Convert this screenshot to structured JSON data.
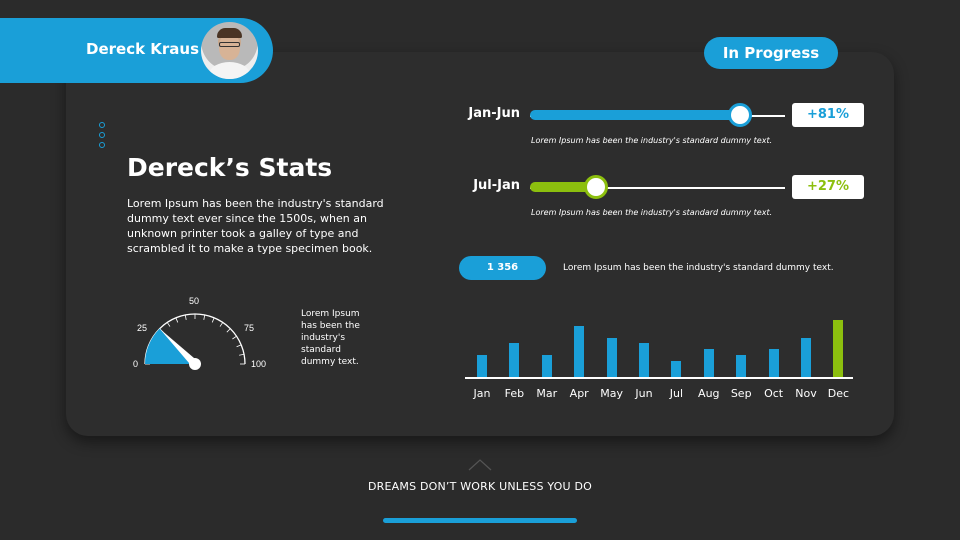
{
  "header": {
    "name": "Dereck Kraus",
    "status": "In Progress"
  },
  "stats": {
    "title": "Dereck’s Stats",
    "description": "Lorem Ipsum has been the industry's standard dummy text ever since the 1500s, when an unknown printer took a galley of type and scrambled it to make a type specimen book."
  },
  "gauge": {
    "ticks": [
      "0",
      "25",
      "50",
      "75",
      "100"
    ],
    "value": 25,
    "note": "Lorem Ipsum has been the industry's standard dummy text."
  },
  "ranges": [
    {
      "label": "Jan-Jun",
      "percent_label": "+81%",
      "fill": 81,
      "color": "#1a9fd8",
      "caption": "Lorem Ipsum has been the industry's standard dummy text."
    },
    {
      "label": "Jul-Jan",
      "percent_label": "+27%",
      "fill": 27,
      "color": "#8cbf0e",
      "caption": "Lorem Ipsum has been the industry's standard dummy text."
    }
  ],
  "count": {
    "value": "1 356",
    "caption": "Lorem Ipsum has been the industry's standard dummy text."
  },
  "chart_data": {
    "type": "bar",
    "title": "",
    "xlabel": "",
    "ylabel": "",
    "grid": false,
    "categories": [
      "Jan",
      "Feb",
      "Mar",
      "Apr",
      "May",
      "Jun",
      "Jul",
      "Aug",
      "Sep",
      "Oct",
      "Nov",
      "Dec"
    ],
    "values": [
      22,
      34,
      22,
      51,
      39,
      34,
      16,
      28,
      22,
      28,
      39,
      57
    ],
    "colors": [
      "#1a9fd8",
      "#1a9fd8",
      "#1a9fd8",
      "#1a9fd8",
      "#1a9fd8",
      "#1a9fd8",
      "#1a9fd8",
      "#1a9fd8",
      "#1a9fd8",
      "#1a9fd8",
      "#1a9fd8",
      "#8cbf0e"
    ],
    "ylim": [
      0,
      60
    ]
  },
  "footer": {
    "quote": "DREAMS DON’T WORK UNLESS YOU DO"
  },
  "colors": {
    "accent": "#1a9fd8",
    "accent_green": "#8cbf0e",
    "background": "#2b2b2b"
  }
}
